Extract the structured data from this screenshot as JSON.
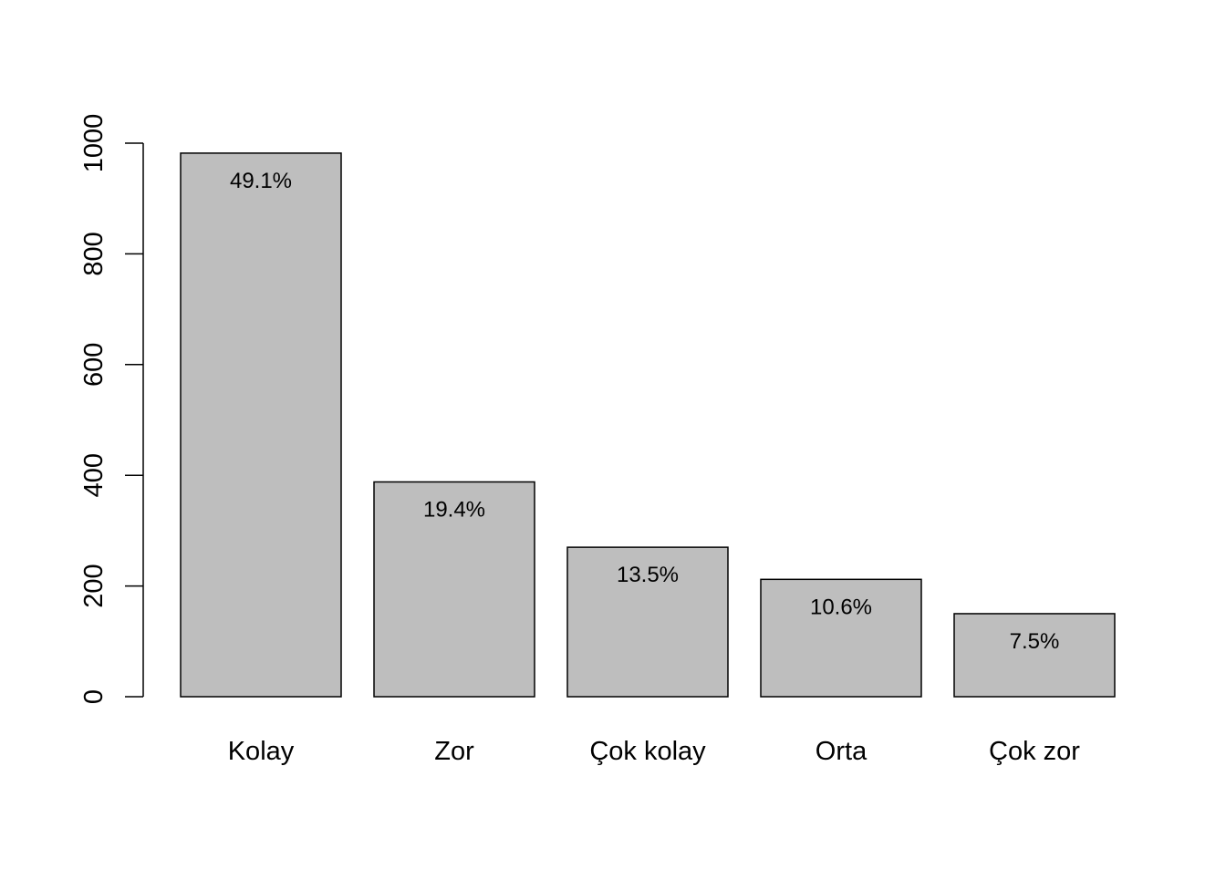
{
  "chart_data": {
    "type": "bar",
    "title": "",
    "xlabel": "",
    "ylabel": "",
    "categories": [
      "Kolay",
      "Zor",
      "Çok kolay",
      "Orta",
      "Çok zor"
    ],
    "values": [
      982,
      388,
      270,
      212,
      150
    ],
    "data_labels": [
      "49.1%",
      "19.4%",
      "13.5%",
      "10.6%",
      "7.5%"
    ],
    "ylim": [
      0,
      1000
    ],
    "yticks": [
      0,
      200,
      400,
      600,
      800,
      1000
    ],
    "ytick_labels": [
      "0",
      "200",
      "400",
      "600",
      "800",
      "1000"
    ],
    "grid": false,
    "legend": "none",
    "colors": {
      "bar_fill": "#bebebe",
      "bar_stroke": "#000000",
      "axis": "#000000",
      "background": "#ffffff"
    }
  }
}
